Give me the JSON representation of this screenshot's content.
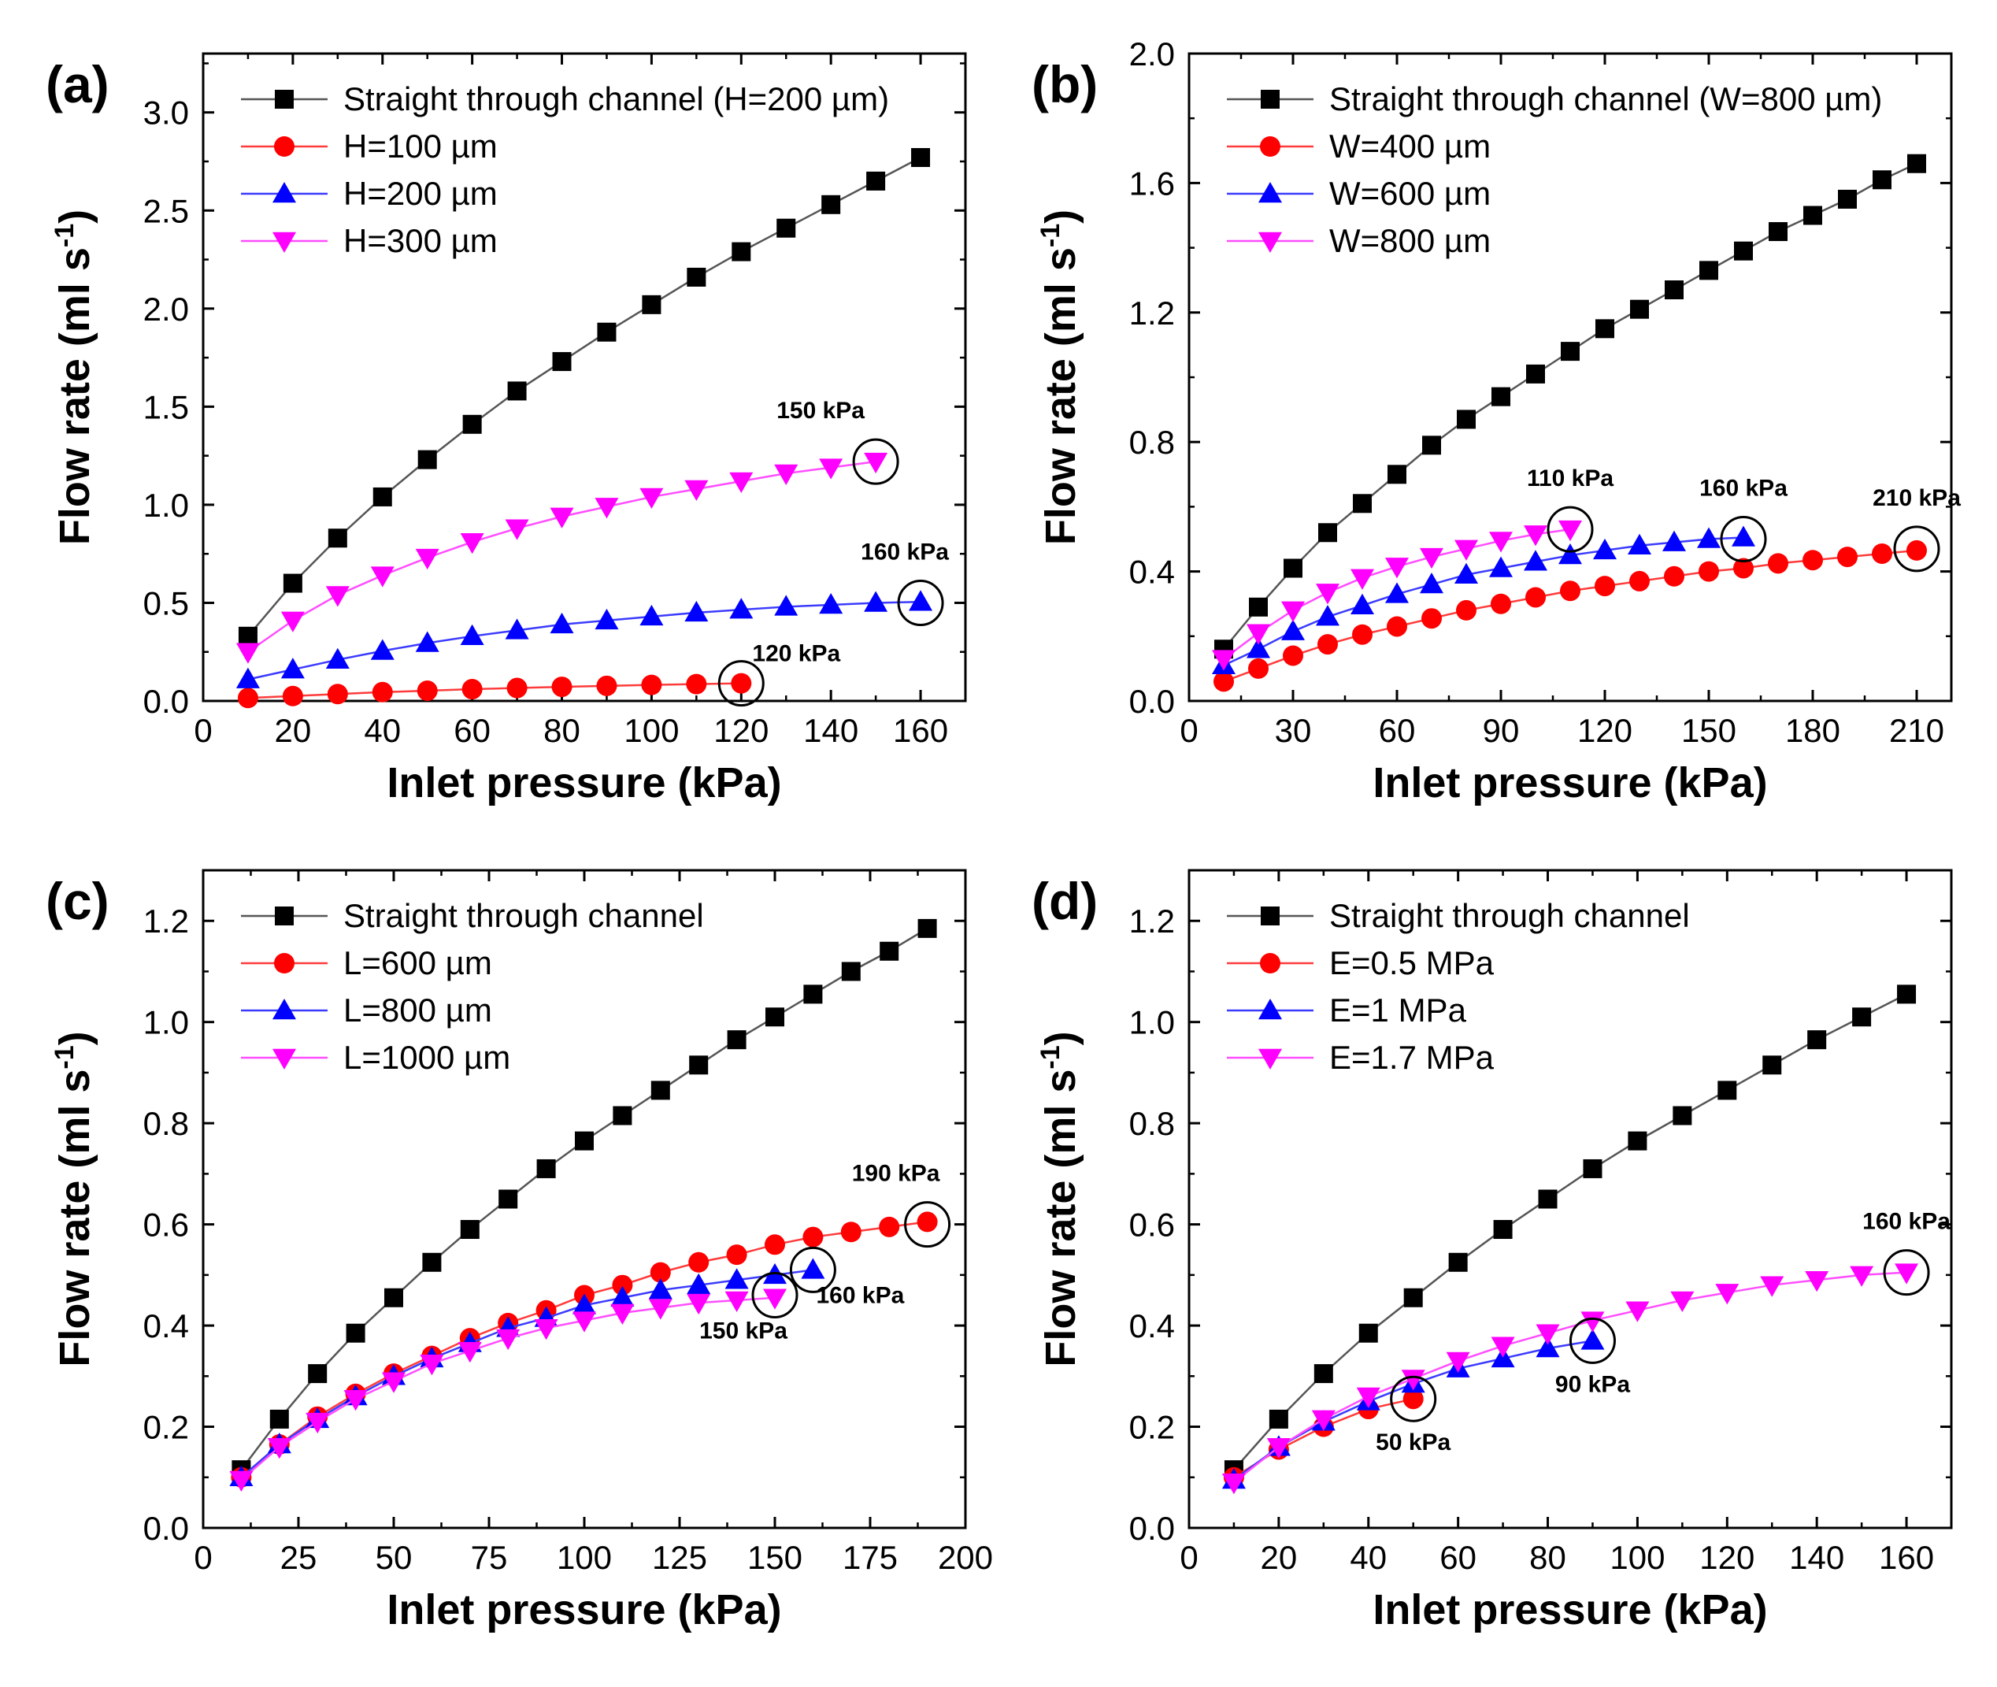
{
  "figure": {
    "panels": [
      {
        "id": "a",
        "label": "(a)",
        "xlabel": "Inlet pressure (kPa)",
        "ylabel_main": "Flow rate (ml s",
        "ylabel_sup": "-1",
        "ylabel_close": ")",
        "xlim": [
          0,
          170
        ],
        "ylim": [
          0,
          3.3
        ],
        "xticks": [
          0,
          20,
          40,
          60,
          80,
          100,
          120,
          140,
          160
        ],
        "xtick_labels": [
          "0",
          "20",
          "40",
          "60",
          "80",
          "100",
          "120",
          "140",
          "160"
        ],
        "yticks": [
          0.0,
          0.5,
          1.0,
          1.5,
          2.0,
          2.5,
          3.0
        ],
        "ytick_labels": [
          "0.0",
          "0.5",
          "1.0",
          "1.5",
          "2.0",
          "2.5",
          "3.0"
        ],
        "legend": [
          "Straight through channel (H=200 µm)",
          "H=100 µm",
          "H=200 µm",
          "H=300 µm"
        ],
        "annotations": [
          {
            "text": "150 kPa",
            "x": 150,
            "y": 1.22,
            "series": 3
          },
          {
            "text": "160 kPa",
            "x": 160,
            "y": 0.5,
            "series": 2
          },
          {
            "text": "120 kPa",
            "x": 120,
            "y": 0.09,
            "series": 1
          }
        ]
      },
      {
        "id": "b",
        "label": "(b)",
        "xlabel": "Inlet pressure (kPa)",
        "ylabel_main": "Flow rate (ml s",
        "ylabel_sup": "-1",
        "ylabel_close": ")",
        "xlim": [
          0,
          220
        ],
        "ylim": [
          0,
          2.0
        ],
        "xticks": [
          0,
          30,
          60,
          90,
          120,
          150,
          180,
          210
        ],
        "xtick_labels": [
          "0",
          "30",
          "60",
          "90",
          "120",
          "150",
          "180",
          "210"
        ],
        "yticks": [
          0.0,
          0.4,
          0.8,
          1.2,
          1.6,
          2.0
        ],
        "ytick_labels": [
          "0.0",
          "0.4",
          "0.8",
          "1.2",
          "1.6",
          "2.0"
        ],
        "legend": [
          "Straight through channel (W=800 µm)",
          "W=400 µm",
          "W=600 µm",
          "W=800 µm"
        ],
        "annotations": [
          {
            "text": "110 kPa",
            "x": 110,
            "y": 0.53,
            "series": 3
          },
          {
            "text": "160 kPa",
            "x": 160,
            "y": 0.5,
            "series": 2
          },
          {
            "text": "210 kPa",
            "x": 210,
            "y": 0.47,
            "series": 1
          }
        ]
      },
      {
        "id": "c",
        "label": "(c)",
        "xlabel": "Inlet pressure (kPa)",
        "ylabel_main": "Flow rate (ml s",
        "ylabel_sup": "-1",
        "ylabel_close": ")",
        "xlim": [
          0,
          200
        ],
        "ylim": [
          0,
          1.3
        ],
        "xticks": [
          0,
          25,
          50,
          75,
          100,
          125,
          150,
          175,
          200
        ],
        "xtick_labels": [
          "0",
          "25",
          "50",
          "75",
          "100",
          "125",
          "150",
          "175",
          "200"
        ],
        "yticks": [
          0.0,
          0.2,
          0.4,
          0.6,
          0.8,
          1.0,
          1.2
        ],
        "ytick_labels": [
          "0.0",
          "0.2",
          "0.4",
          "0.6",
          "0.8",
          "1.0",
          "1.2"
        ],
        "legend": [
          "Straight through channel",
          "L=600 µm",
          "L=800 µm",
          "L=1000 µm"
        ],
        "annotations": [
          {
            "text": "190 kPa",
            "x": 190,
            "y": 0.6,
            "series": 1
          },
          {
            "text": "160 kPa",
            "x": 160,
            "y": 0.51,
            "series": 2
          },
          {
            "text": "150 kPa",
            "x": 150,
            "y": 0.46,
            "series": 3
          }
        ]
      },
      {
        "id": "d",
        "label": "(d)",
        "xlabel": "Inlet pressure (kPa)",
        "ylabel_main": "Flow rate (ml s",
        "ylabel_sup": "-1",
        "ylabel_close": ")",
        "xlim": [
          0,
          170
        ],
        "ylim": [
          0,
          1.3
        ],
        "xticks": [
          0,
          20,
          40,
          60,
          80,
          100,
          120,
          140,
          160
        ],
        "xtick_labels": [
          "0",
          "20",
          "40",
          "60",
          "80",
          "100",
          "120",
          "140",
          "160"
        ],
        "yticks": [
          0.0,
          0.2,
          0.4,
          0.6,
          0.8,
          1.0,
          1.2
        ],
        "ytick_labels": [
          "0.0",
          "0.2",
          "0.4",
          "0.6",
          "0.8",
          "1.0",
          "1.2"
        ],
        "legend": [
          "Straight through channel",
          "E=0.5 MPa",
          "E=1 MPa",
          "E=1.7 MPa"
        ],
        "annotations": [
          {
            "text": "160 kPa",
            "x": 160,
            "y": 0.505,
            "series": 3
          },
          {
            "text": "90 kPa",
            "x": 90,
            "y": 0.37,
            "series": 2
          },
          {
            "text": "50 kPa",
            "x": 50,
            "y": 0.255,
            "series": 1
          }
        ]
      }
    ],
    "styles": {
      "series_colors": [
        "#000000",
        "#ff0000",
        "#0000ff",
        "#ff00ff"
      ],
      "line_colors": [
        "#555555",
        "#ff3b3b",
        "#3b3bff",
        "#ff4dff"
      ],
      "markers": [
        "square",
        "circle",
        "triangle-up",
        "triangle-down"
      ]
    }
  },
  "chart_data": [
    {
      "type": "line",
      "title": "(a)",
      "xlabel": "Inlet pressure (kPa)",
      "ylabel": "Flow rate (ml s-1)",
      "xlim": [
        0,
        170
      ],
      "ylim": [
        0,
        3.3
      ],
      "legend_position": "top-left",
      "series": [
        {
          "name": "Straight through channel (H=200 µm)",
          "x": [
            10,
            20,
            30,
            40,
            50,
            60,
            70,
            80,
            90,
            100,
            110,
            120,
            130,
            140,
            150,
            160
          ],
          "y": [
            0.33,
            0.6,
            0.83,
            1.04,
            1.23,
            1.41,
            1.58,
            1.73,
            1.88,
            2.02,
            2.16,
            2.29,
            2.41,
            2.53,
            2.65,
            2.77
          ]
        },
        {
          "name": "H=100 µm",
          "x": [
            10,
            20,
            30,
            40,
            50,
            60,
            70,
            80,
            90,
            100,
            110,
            120
          ],
          "y": [
            0.015,
            0.025,
            0.035,
            0.045,
            0.052,
            0.06,
            0.066,
            0.072,
            0.077,
            0.082,
            0.086,
            0.09
          ]
        },
        {
          "name": "H=200 µm",
          "x": [
            10,
            20,
            30,
            40,
            50,
            60,
            70,
            80,
            90,
            100,
            110,
            120,
            130,
            140,
            150,
            160
          ],
          "y": [
            0.11,
            0.16,
            0.21,
            0.255,
            0.295,
            0.33,
            0.36,
            0.39,
            0.41,
            0.43,
            0.45,
            0.465,
            0.48,
            0.49,
            0.5,
            0.505
          ]
        },
        {
          "name": "H=300 µm",
          "x": [
            10,
            20,
            30,
            40,
            50,
            60,
            70,
            80,
            90,
            100,
            110,
            120,
            130,
            140,
            150
          ],
          "y": [
            0.25,
            0.41,
            0.54,
            0.64,
            0.73,
            0.81,
            0.88,
            0.94,
            0.99,
            1.04,
            1.08,
            1.12,
            1.16,
            1.19,
            1.22
          ]
        }
      ]
    },
    {
      "type": "line",
      "title": "(b)",
      "xlabel": "Inlet pressure (kPa)",
      "ylabel": "Flow rate (ml s-1)",
      "xlim": [
        0,
        220
      ],
      "ylim": [
        0,
        2.0
      ],
      "legend_position": "top-left",
      "series": [
        {
          "name": "Straight through channel (W=800 µm)",
          "x": [
            10,
            20,
            30,
            40,
            50,
            60,
            70,
            80,
            90,
            100,
            110,
            120,
            130,
            140,
            150,
            160,
            170,
            180,
            190,
            200,
            210
          ],
          "y": [
            0.16,
            0.29,
            0.41,
            0.52,
            0.61,
            0.7,
            0.79,
            0.87,
            0.94,
            1.01,
            1.08,
            1.15,
            1.21,
            1.27,
            1.33,
            1.39,
            1.45,
            1.5,
            1.55,
            1.61,
            1.66
          ]
        },
        {
          "name": "W=400 µm",
          "x": [
            10,
            20,
            30,
            40,
            50,
            60,
            70,
            80,
            90,
            100,
            110,
            120,
            130,
            140,
            150,
            160,
            170,
            180,
            190,
            200,
            210
          ],
          "y": [
            0.06,
            0.1,
            0.14,
            0.175,
            0.205,
            0.23,
            0.255,
            0.28,
            0.3,
            0.32,
            0.34,
            0.355,
            0.37,
            0.385,
            0.4,
            0.41,
            0.425,
            0.435,
            0.445,
            0.455,
            0.465
          ]
        },
        {
          "name": "W=600 µm",
          "x": [
            10,
            20,
            30,
            40,
            50,
            60,
            70,
            80,
            90,
            100,
            110,
            120,
            130,
            140,
            150,
            160
          ],
          "y": [
            0.11,
            0.16,
            0.215,
            0.26,
            0.295,
            0.33,
            0.36,
            0.39,
            0.41,
            0.43,
            0.45,
            0.465,
            0.48,
            0.49,
            0.5,
            0.505
          ]
        },
        {
          "name": "W=800 µm",
          "x": [
            10,
            20,
            30,
            40,
            50,
            60,
            70,
            80,
            90,
            100,
            110
          ],
          "y": [
            0.13,
            0.21,
            0.28,
            0.335,
            0.38,
            0.415,
            0.445,
            0.47,
            0.495,
            0.515,
            0.53
          ]
        }
      ]
    },
    {
      "type": "line",
      "title": "(c)",
      "xlabel": "Inlet pressure (kPa)",
      "ylabel": "Flow rate (ml s-1)",
      "xlim": [
        0,
        200
      ],
      "ylim": [
        0,
        1.3
      ],
      "legend_position": "top-left",
      "series": [
        {
          "name": "Straight through channel",
          "x": [
            10,
            20,
            30,
            40,
            50,
            60,
            70,
            80,
            90,
            100,
            110,
            120,
            130,
            140,
            150,
            160,
            170,
            180,
            190
          ],
          "y": [
            0.115,
            0.215,
            0.305,
            0.385,
            0.455,
            0.525,
            0.59,
            0.65,
            0.71,
            0.765,
            0.815,
            0.865,
            0.915,
            0.965,
            1.01,
            1.055,
            1.1,
            1.14,
            1.185
          ]
        },
        {
          "name": "L=600 µm",
          "x": [
            10,
            20,
            30,
            40,
            50,
            60,
            70,
            80,
            90,
            100,
            110,
            120,
            130,
            140,
            150,
            160,
            170,
            180,
            190
          ],
          "y": [
            0.1,
            0.165,
            0.22,
            0.265,
            0.305,
            0.34,
            0.375,
            0.405,
            0.43,
            0.46,
            0.48,
            0.505,
            0.525,
            0.54,
            0.56,
            0.575,
            0.585,
            0.595,
            0.605
          ]
        },
        {
          "name": "L=800 µm",
          "x": [
            10,
            20,
            30,
            40,
            50,
            60,
            70,
            80,
            90,
            100,
            110,
            120,
            130,
            140,
            150,
            160
          ],
          "y": [
            0.1,
            0.165,
            0.215,
            0.26,
            0.3,
            0.335,
            0.365,
            0.395,
            0.415,
            0.44,
            0.455,
            0.47,
            0.48,
            0.49,
            0.5,
            0.51
          ]
        },
        {
          "name": "L=1000 µm",
          "x": [
            10,
            20,
            30,
            40,
            50,
            60,
            70,
            80,
            90,
            100,
            110,
            120,
            130,
            140,
            150
          ],
          "y": [
            0.095,
            0.16,
            0.21,
            0.255,
            0.29,
            0.325,
            0.35,
            0.375,
            0.395,
            0.41,
            0.425,
            0.435,
            0.445,
            0.45,
            0.455
          ]
        }
      ]
    },
    {
      "type": "line",
      "title": "(d)",
      "xlabel": "Inlet pressure (kPa)",
      "ylabel": "Flow rate (ml s-1)",
      "xlim": [
        0,
        170
      ],
      "ylim": [
        0,
        1.3
      ],
      "legend_position": "top-left",
      "series": [
        {
          "name": "Straight through channel",
          "x": [
            10,
            20,
            30,
            40,
            50,
            60,
            70,
            80,
            90,
            100,
            110,
            120,
            130,
            140,
            150,
            160
          ],
          "y": [
            0.115,
            0.215,
            0.305,
            0.385,
            0.455,
            0.525,
            0.59,
            0.65,
            0.71,
            0.765,
            0.815,
            0.865,
            0.915,
            0.965,
            1.01,
            1.055
          ]
        },
        {
          "name": "E=0.5 MPa",
          "x": [
            10,
            20,
            30,
            40,
            50
          ],
          "y": [
            0.1,
            0.155,
            0.2,
            0.235,
            0.255
          ]
        },
        {
          "name": "E=1 MPa",
          "x": [
            10,
            20,
            30,
            40,
            50,
            60,
            70,
            80,
            90
          ],
          "y": [
            0.095,
            0.16,
            0.21,
            0.25,
            0.285,
            0.315,
            0.335,
            0.355,
            0.37
          ]
        },
        {
          "name": "E=1.7 MPa",
          "x": [
            10,
            20,
            30,
            40,
            50,
            60,
            70,
            80,
            90,
            100,
            110,
            120,
            130,
            140,
            150,
            160
          ],
          "y": [
            0.09,
            0.16,
            0.215,
            0.26,
            0.295,
            0.33,
            0.36,
            0.385,
            0.41,
            0.43,
            0.45,
            0.465,
            0.48,
            0.49,
            0.5,
            0.505
          ]
        }
      ]
    }
  ]
}
